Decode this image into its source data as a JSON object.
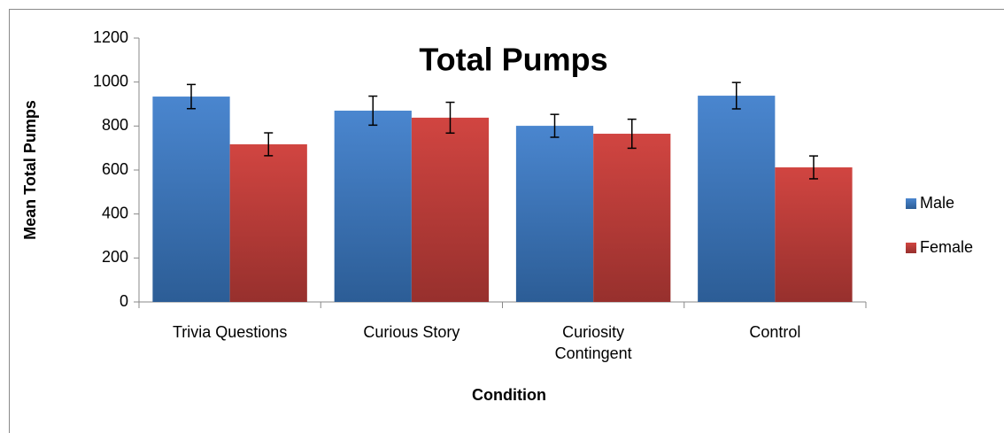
{
  "chart_data": {
    "type": "bar",
    "title": "Total Pumps",
    "x_label": "Condition",
    "y_label": "Mean Total Pumps",
    "categories": [
      "Trivia Questions",
      "Curious Story",
      "Curiosity Contingent",
      "Control"
    ],
    "series": [
      {
        "name": "Male",
        "color": "#4f81bd",
        "values": [
          934,
          870,
          801,
          938
        ],
        "errors": [
          55,
          66,
          52,
          60
        ]
      },
      {
        "name": "Female",
        "color": "#c0504d",
        "values": [
          717,
          838,
          765,
          612
        ],
        "errors": [
          52,
          70,
          66,
          52
        ]
      }
    ],
    "ylim": [
      0,
      1200
    ],
    "yticks": [
      0,
      200,
      400,
      600,
      800,
      1000,
      1200
    ],
    "legend": "right",
    "grid": false
  }
}
